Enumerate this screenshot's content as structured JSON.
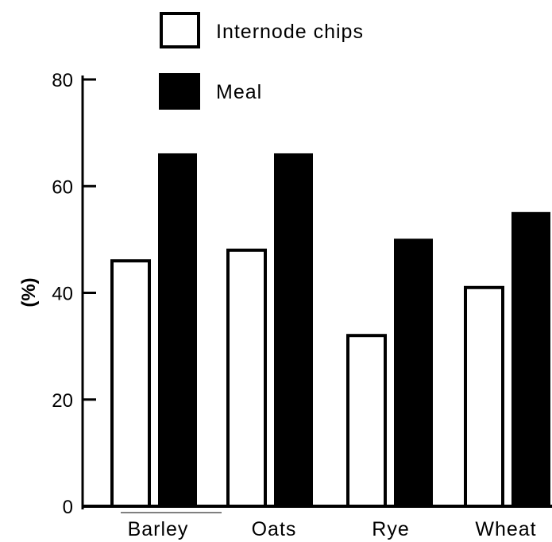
{
  "chart_data": {
    "type": "bar",
    "categories": [
      "Barley",
      "Oats",
      "Rye",
      "Wheat"
    ],
    "series": [
      {
        "name": "Internode chips",
        "values": [
          46,
          48,
          32,
          41
        ],
        "fill": "#ffffff"
      },
      {
        "name": "Meal",
        "values": [
          66,
          66,
          50,
          55
        ],
        "fill": "#000000"
      }
    ],
    "ylabel": "(%)",
    "xlabel": "",
    "ylim": [
      0,
      80
    ],
    "yticks": [
      0,
      20,
      40,
      60,
      80
    ],
    "grid": false,
    "legend_position": "top"
  }
}
